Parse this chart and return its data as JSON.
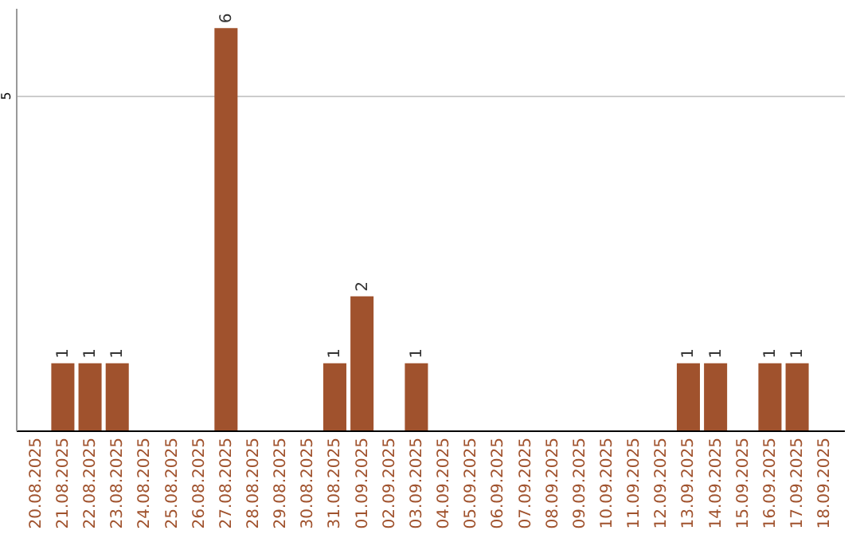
{
  "chart_data": {
    "type": "bar",
    "categories": [
      "20.08.2025",
      "21.08.2025",
      "22.08.2025",
      "23.08.2025",
      "24.08.2025",
      "25.08.2025",
      "26.08.2025",
      "27.08.2025",
      "28.08.2025",
      "29.08.2025",
      "30.08.2025",
      "31.08.2025",
      "01.09.2025",
      "02.09.2025",
      "03.09.2025",
      "04.09.2025",
      "05.09.2025",
      "06.09.2025",
      "07.09.2025",
      "08.09.2025",
      "09.09.2025",
      "10.09.2025",
      "11.09.2025",
      "12.09.2025",
      "13.09.2025",
      "14.09.2025",
      "15.09.2025",
      "16.09.2025",
      "17.09.2025",
      "18.09.2025"
    ],
    "values": [
      0,
      1,
      1,
      1,
      0,
      0,
      0,
      6,
      0,
      0,
      0,
      1,
      2,
      0,
      1,
      0,
      0,
      0,
      0,
      0,
      0,
      0,
      0,
      0,
      1,
      1,
      0,
      1,
      1,
      0
    ],
    "value_labels": [
      null,
      "1",
      "1",
      "1",
      null,
      null,
      null,
      "6",
      null,
      null,
      null,
      "1",
      "2",
      null,
      "1",
      null,
      null,
      null,
      null,
      null,
      null,
      null,
      null,
      null,
      "1",
      "1",
      null,
      "1",
      "1",
      null
    ],
    "color": "#a0522d",
    "ylim": [
      0,
      6.3
    ],
    "yticks": [
      5
    ],
    "grid": "y"
  }
}
